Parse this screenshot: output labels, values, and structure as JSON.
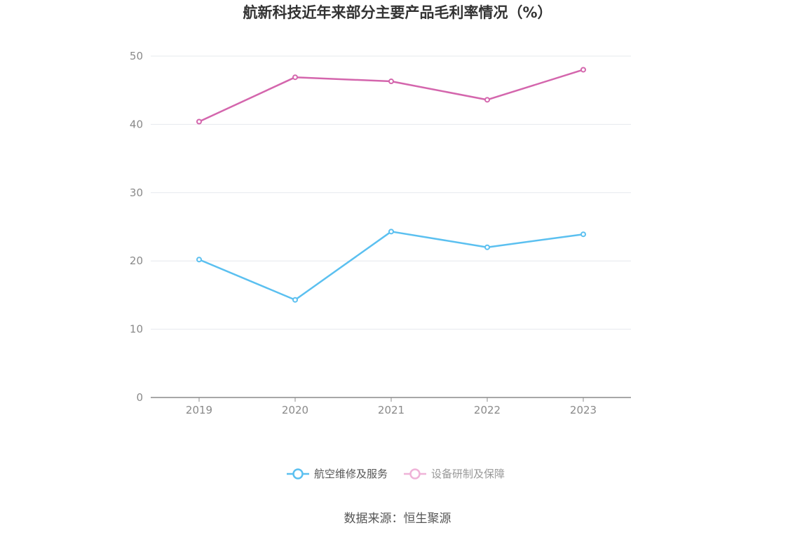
{
  "chart_data": {
    "type": "line",
    "title": "航新科技近年来部分主要产品毛利率情况（%）",
    "categories": [
      "2019",
      "2020",
      "2021",
      "2022",
      "2023"
    ],
    "series": [
      {
        "name": "航空维修及服务",
        "values": [
          20.2,
          14.3,
          24.3,
          22.0,
          23.9
        ],
        "color": "#5bc0f0"
      },
      {
        "name": "设备研制及保障",
        "values": [
          40.4,
          46.9,
          46.3,
          43.6,
          48.0
        ],
        "color": "#d466ad"
      }
    ],
    "ylim": [
      0,
      50
    ],
    "yticks": [
      0,
      10,
      20,
      30,
      40,
      50
    ],
    "grid": true,
    "legend_position": "bottom"
  },
  "footer": {
    "source": "数据来源：恒生聚源"
  },
  "colors": {
    "grid": "#e6e8ee",
    "axis": "#8c8c8c",
    "legend_inactive": "#efb3d8"
  }
}
